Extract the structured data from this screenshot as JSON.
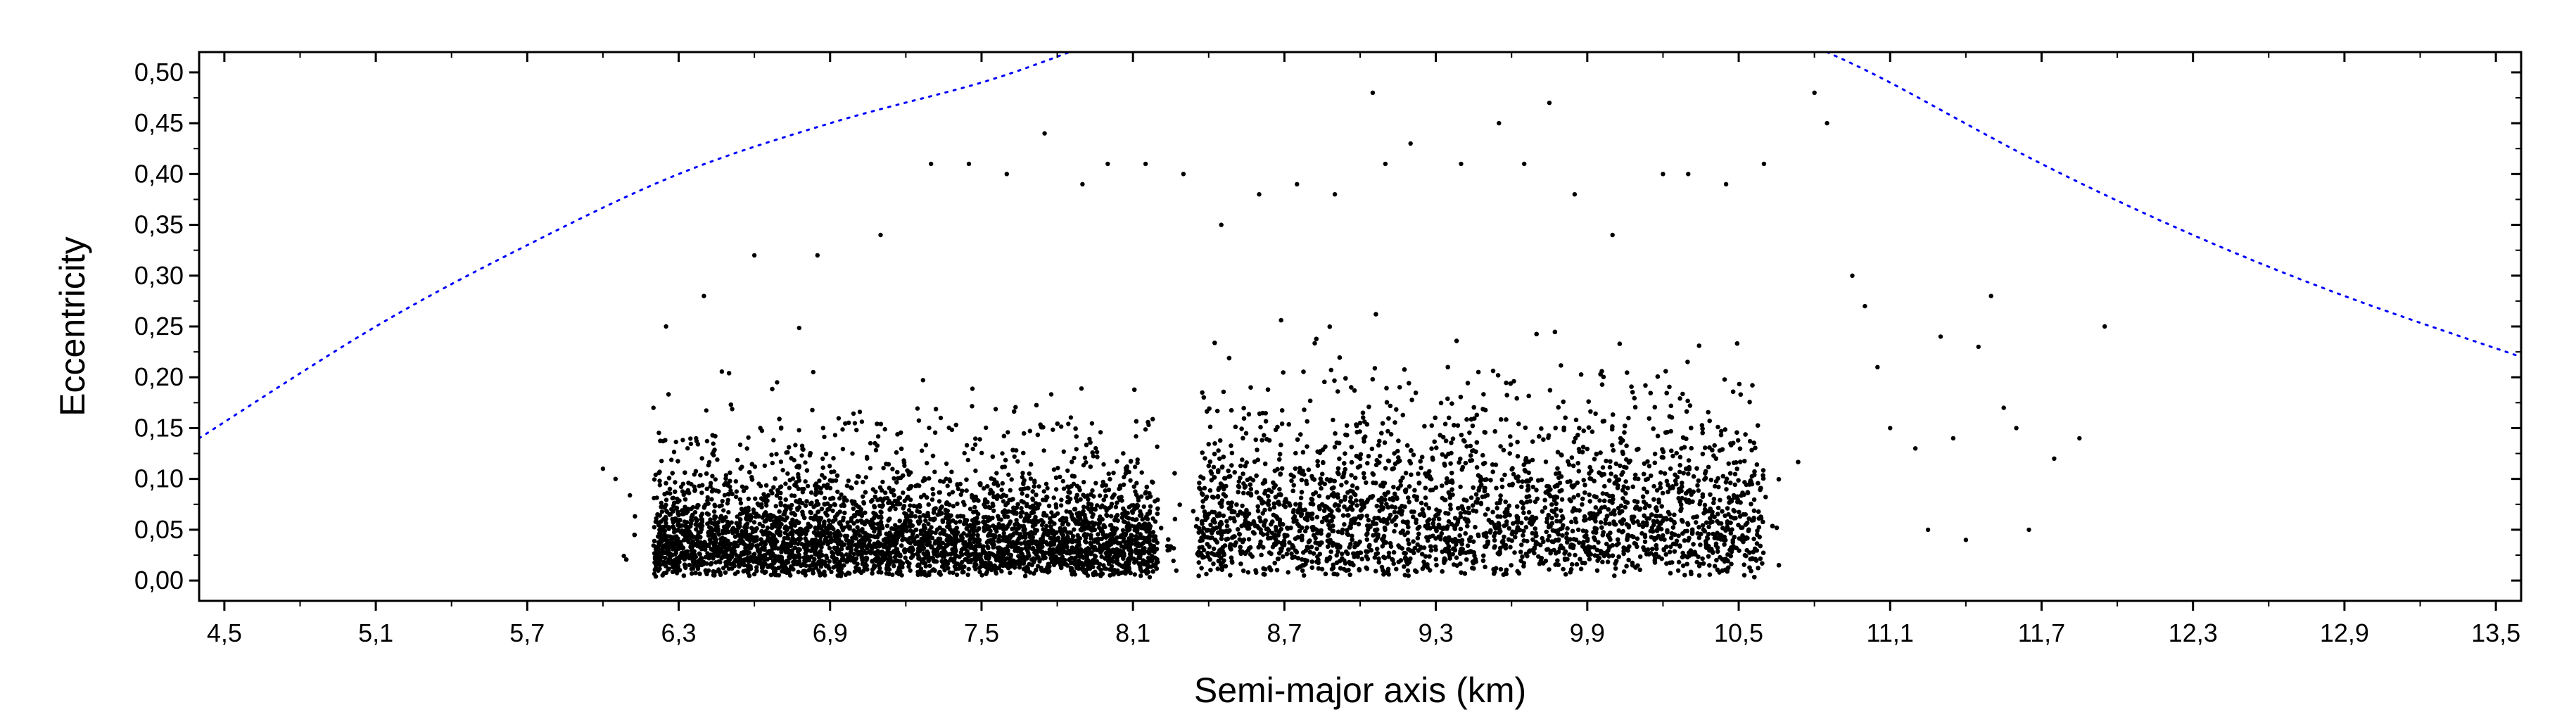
{
  "chart_data": {
    "type": "scatter",
    "xlabel": "Semi-major axis (km)",
    "ylabel": "Eccentricity",
    "xlim": [
      4.4,
      13.6
    ],
    "ylim": [
      -0.02,
      0.52
    ],
    "xticks": [
      {
        "value": 4.5,
        "label": "4,5"
      },
      {
        "value": 5.1,
        "label": "5,1"
      },
      {
        "value": 5.7,
        "label": "5,7"
      },
      {
        "value": 6.3,
        "label": "6,3"
      },
      {
        "value": 6.9,
        "label": "6,9"
      },
      {
        "value": 7.5,
        "label": "7,5"
      },
      {
        "value": 8.1,
        "label": "8,1"
      },
      {
        "value": 8.7,
        "label": "8,7"
      },
      {
        "value": 9.3,
        "label": "9,3"
      },
      {
        "value": 9.9,
        "label": "9,9"
      },
      {
        "value": 10.5,
        "label": "10,5"
      },
      {
        "value": 11.1,
        "label": "11,1"
      },
      {
        "value": 11.7,
        "label": "11,7"
      },
      {
        "value": 12.3,
        "label": "12,3"
      },
      {
        "value": 12.9,
        "label": "12,9"
      },
      {
        "value": 13.5,
        "label": "13,5"
      }
    ],
    "yticks": [
      {
        "value": 0.0,
        "label": "0,00"
      },
      {
        "value": 0.05,
        "label": "0,05"
      },
      {
        "value": 0.1,
        "label": "0,10"
      },
      {
        "value": 0.15,
        "label": "0,15"
      },
      {
        "value": 0.2,
        "label": "0,20"
      },
      {
        "value": 0.25,
        "label": "0,25"
      },
      {
        "value": 0.3,
        "label": "0,30"
      },
      {
        "value": 0.35,
        "label": "0,35"
      },
      {
        "value": 0.4,
        "label": "0,40"
      },
      {
        "value": 0.45,
        "label": "0,45"
      },
      {
        "value": 0.5,
        "label": "0,50"
      }
    ],
    "grid": false,
    "legend": "none",
    "colors": {
      "points": "#000000",
      "boundary_curves": "#0000ff",
      "frame": "#000000"
    },
    "clusters": [
      {
        "name": "",
        "x_range": [
          6.2,
          8.2
        ],
        "e_peak": 0.05,
        "point_density": "very high"
      },
      {
        "name": "",
        "x_range": [
          8.35,
          10.6
        ],
        "e_peak": 0.08,
        "point_density": "very high"
      }
    ],
    "sparse_points": [
      [
        6.0,
        0.11
      ],
      [
        6.05,
        0.1
      ],
      [
        6.2,
        0.17
      ],
      [
        6.25,
        0.25
      ],
      [
        6.4,
        0.28
      ],
      [
        6.6,
        0.32
      ],
      [
        6.85,
        0.32
      ],
      [
        7.1,
        0.34
      ],
      [
        7.3,
        0.41
      ],
      [
        7.45,
        0.41
      ],
      [
        7.6,
        0.4
      ],
      [
        7.75,
        0.44
      ],
      [
        7.9,
        0.39
      ],
      [
        8.0,
        0.41
      ],
      [
        8.15,
        0.41
      ],
      [
        8.3,
        0.4
      ],
      [
        8.45,
        0.35
      ],
      [
        8.6,
        0.38
      ],
      [
        8.75,
        0.39
      ],
      [
        8.9,
        0.38
      ],
      [
        9.05,
        0.48
      ],
      [
        9.1,
        0.41
      ],
      [
        9.2,
        0.43
      ],
      [
        9.4,
        0.41
      ],
      [
        9.55,
        0.45
      ],
      [
        9.65,
        0.41
      ],
      [
        9.75,
        0.47
      ],
      [
        9.85,
        0.38
      ],
      [
        10.0,
        0.34
      ],
      [
        10.2,
        0.4
      ],
      [
        10.3,
        0.4
      ],
      [
        10.45,
        0.39
      ],
      [
        10.6,
        0.41
      ],
      [
        10.8,
        0.48
      ],
      [
        10.85,
        0.45
      ],
      [
        10.95,
        0.3
      ],
      [
        11.0,
        0.27
      ],
      [
        11.05,
        0.21
      ],
      [
        11.1,
        0.15
      ],
      [
        11.2,
        0.13
      ],
      [
        11.25,
        0.05
      ],
      [
        11.3,
        0.24
      ],
      [
        11.35,
        0.14
      ],
      [
        11.4,
        0.04
      ],
      [
        11.45,
        0.23
      ],
      [
        11.5,
        0.28
      ],
      [
        11.55,
        0.17
      ],
      [
        11.6,
        0.15
      ],
      [
        11.65,
        0.05
      ],
      [
        11.75,
        0.12
      ],
      [
        11.85,
        0.14
      ],
      [
        11.95,
        0.25
      ]
    ],
    "boundary_curves": [
      {
        "name": "",
        "x": [
          4.4,
          5.1,
          5.7,
          6.3,
          6.9,
          7.5,
          7.85
        ],
        "y": [
          0.14,
          0.25,
          0.33,
          0.4,
          0.45,
          0.49,
          0.52
        ]
      },
      {
        "name": "",
        "x": [
          10.85,
          11.1,
          11.7,
          12.3,
          12.9,
          13.6
        ],
        "y": [
          0.52,
          0.49,
          0.41,
          0.34,
          0.28,
          0.22
        ]
      }
    ]
  }
}
